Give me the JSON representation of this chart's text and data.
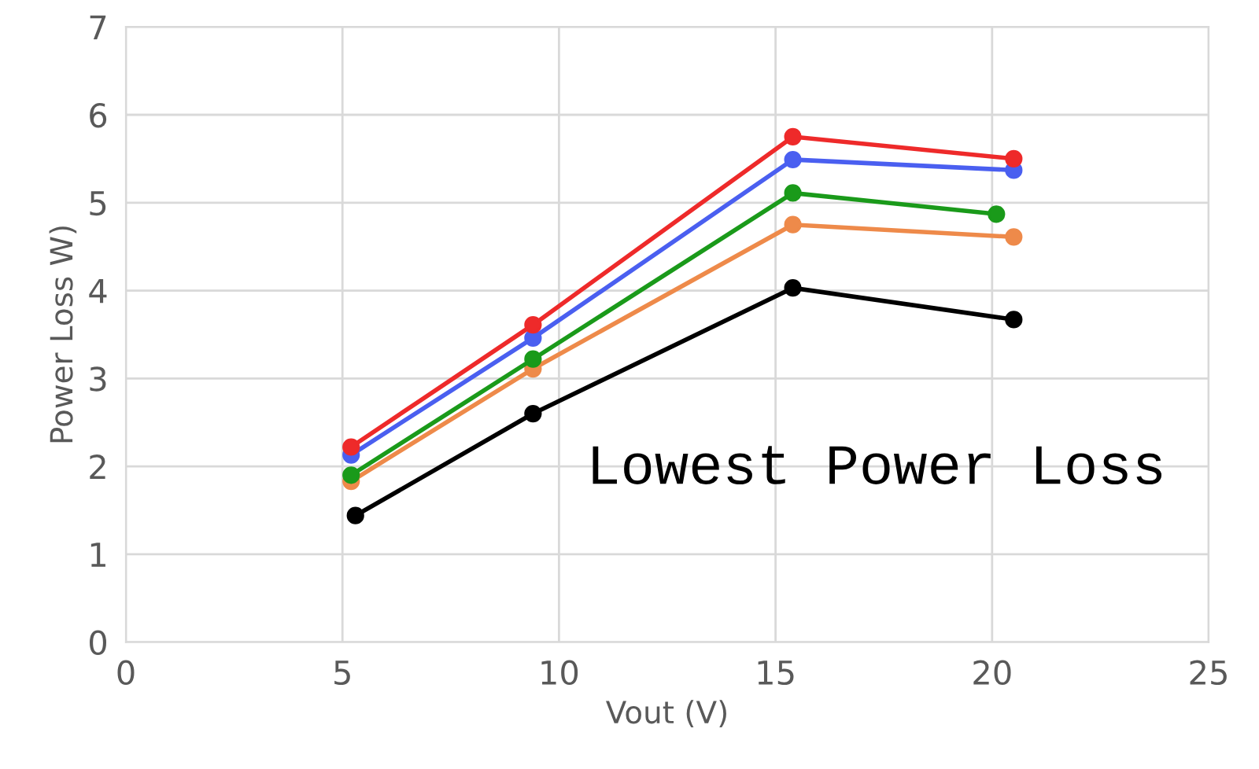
{
  "chart_data": {
    "type": "line",
    "xlabel": "Vout (V)",
    "ylabel": "Power Loss W)",
    "xlim": [
      0,
      25
    ],
    "xticks": [
      0,
      5,
      10,
      15,
      20,
      25
    ],
    "ylim": [
      0,
      7
    ],
    "yticks": [
      0,
      1,
      2,
      3,
      4,
      5,
      6,
      7
    ],
    "grid": true,
    "marker": "circle",
    "line_style": "solid",
    "annotations": [
      "Lowest Power Loss"
    ],
    "series": [
      {
        "color": "#ee2a2a",
        "x": [
          5.2,
          9.4,
          15.4,
          20.5
        ],
        "values": [
          2.22,
          3.61,
          5.75,
          5.5
        ]
      },
      {
        "color": "#4a5ff0",
        "x": [
          5.2,
          9.4,
          15.4,
          20.5
        ],
        "values": [
          2.13,
          3.46,
          5.49,
          5.37
        ]
      },
      {
        "color": "#1a9a1a",
        "x": [
          5.2,
          9.4,
          15.4,
          20.1
        ],
        "values": [
          1.9,
          3.22,
          5.11,
          4.87
        ]
      },
      {
        "color": "#ee8a4a",
        "x": [
          5.2,
          9.4,
          15.4,
          20.5
        ],
        "values": [
          1.83,
          3.11,
          4.75,
          4.61
        ]
      },
      {
        "color": "#000000",
        "x": [
          5.3,
          9.4,
          15.4,
          20.5
        ],
        "values": [
          1.44,
          2.6,
          4.03,
          3.67
        ]
      }
    ]
  }
}
